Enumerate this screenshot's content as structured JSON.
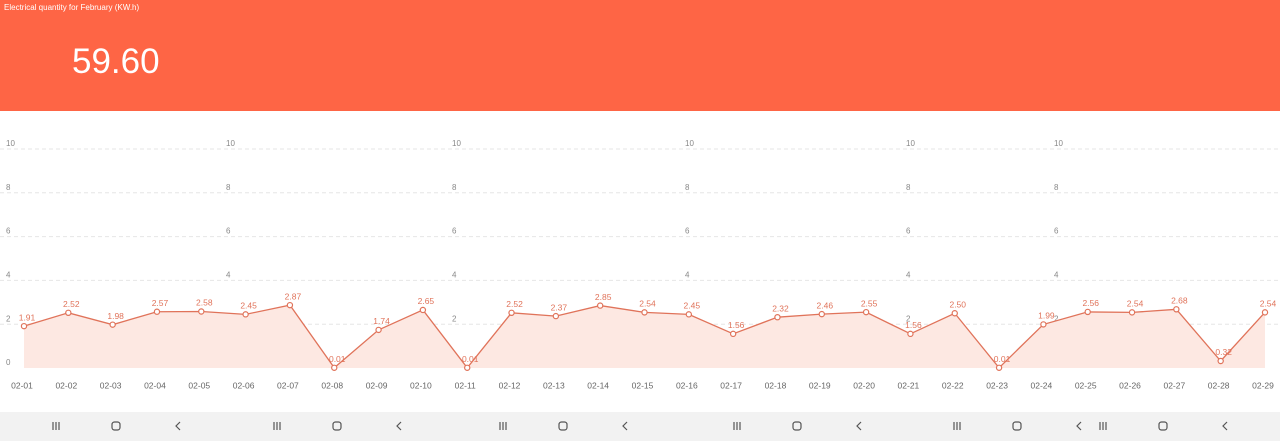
{
  "header": {
    "title": "Electrical quantity for February (KW.h)",
    "total": "59.60"
  },
  "chart_data": {
    "type": "line",
    "categories": [
      "02-01",
      "02-02",
      "02-03",
      "02-04",
      "02-05",
      "02-06",
      "02-07",
      "02-08",
      "02-09",
      "02-10",
      "02-11",
      "02-12",
      "02-13",
      "02-14",
      "02-15",
      "02-16",
      "02-17",
      "02-18",
      "02-19",
      "02-20",
      "02-21",
      "02-22",
      "02-23",
      "02-24",
      "02-25",
      "02-26",
      "02-27",
      "02-28",
      "02-29"
    ],
    "values": [
      1.91,
      2.52,
      1.98,
      2.57,
      2.58,
      2.45,
      2.87,
      0.01,
      1.74,
      2.65,
      0.01,
      2.52,
      2.37,
      2.85,
      2.54,
      2.45,
      1.56,
      2.32,
      2.46,
      2.55,
      1.56,
      2.5,
      0.01,
      1.99,
      2.56,
      2.54,
      2.68,
      0.32,
      2.54
    ],
    "value_labels": [
      "1.91",
      "2.52",
      "1.98",
      "2.57",
      "2.58",
      "2.45",
      "2.87",
      "0.01",
      "1.74",
      "2.65",
      "0.01",
      "2.52",
      "2.37",
      "2.85",
      "2.54",
      "2.45",
      "1.56",
      "2.32",
      "2.46",
      "2.55",
      "1.56",
      "2.50",
      "0.01",
      "1.99",
      "2.56",
      "2.54",
      "2.68",
      "0.32",
      "2.54"
    ],
    "color": "#e0735a",
    "area_color": "#fde8e2",
    "ylim": [
      0,
      10
    ],
    "yticks": [
      0,
      2,
      4,
      6,
      8,
      10
    ],
    "grid": true
  }
}
